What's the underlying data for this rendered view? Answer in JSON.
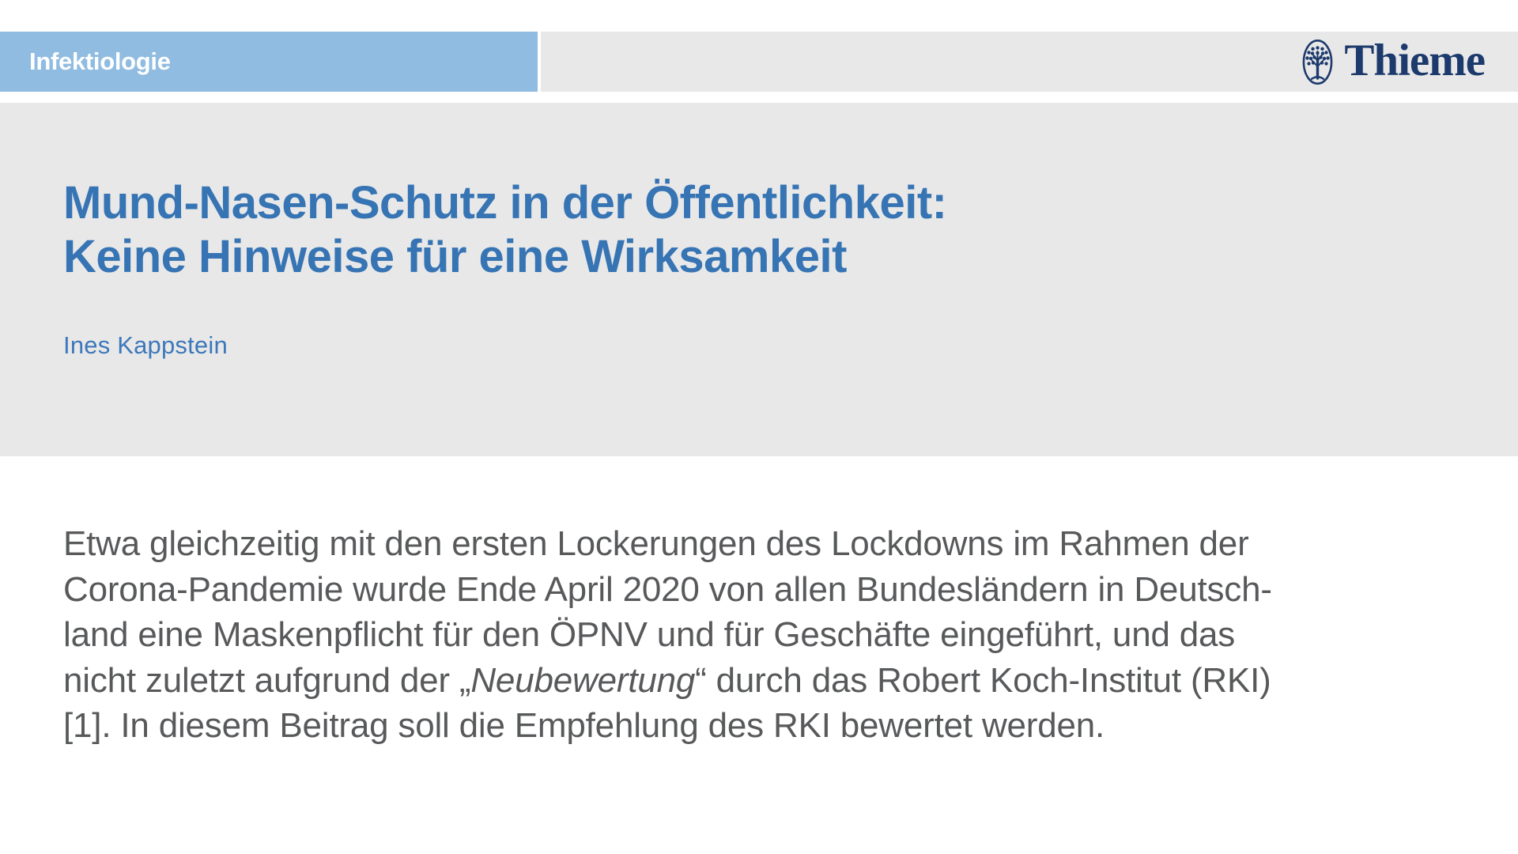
{
  "header": {
    "category": "Infektiologie",
    "publisher": "Thieme",
    "colors": {
      "category_bg": "#90bce1",
      "bar_bg": "#e8e8e8",
      "publisher_navy": "#1d3a6d"
    }
  },
  "article": {
    "title_lines": [
      "Mund-Nasen-Schutz in der Öffentlichkeit:",
      "Keine Hinweise für eine Wirksamkeit"
    ],
    "author": "Ines Kappstein",
    "colors": {
      "title_blue": "#3674b4",
      "author_blue": "#3d78ba"
    }
  },
  "body": {
    "color": "#58595b",
    "lines": [
      [
        {
          "t": "Etwa gleichzeitig mit den ersten Lockerungen des Lockdowns im Rahmen der"
        }
      ],
      [
        {
          "t": "Corona-Pandemie wurde Ende April 2020 von allen Bundesländern in Deutsch-"
        }
      ],
      [
        {
          "t": "land eine Maskenpflicht für den ÖPNV und für Geschäfte eingeführt, und das"
        }
      ],
      [
        {
          "t": "nicht zuletzt aufgrund der „"
        },
        {
          "t": "Neubewertung",
          "i": true
        },
        {
          "t": "“ durch das Robert Koch-Institut (RKI)"
        }
      ],
      [
        {
          "t": "[1]. In diesem Beitrag soll die Empfehlung des RKI bewertet werden."
        }
      ]
    ]
  }
}
